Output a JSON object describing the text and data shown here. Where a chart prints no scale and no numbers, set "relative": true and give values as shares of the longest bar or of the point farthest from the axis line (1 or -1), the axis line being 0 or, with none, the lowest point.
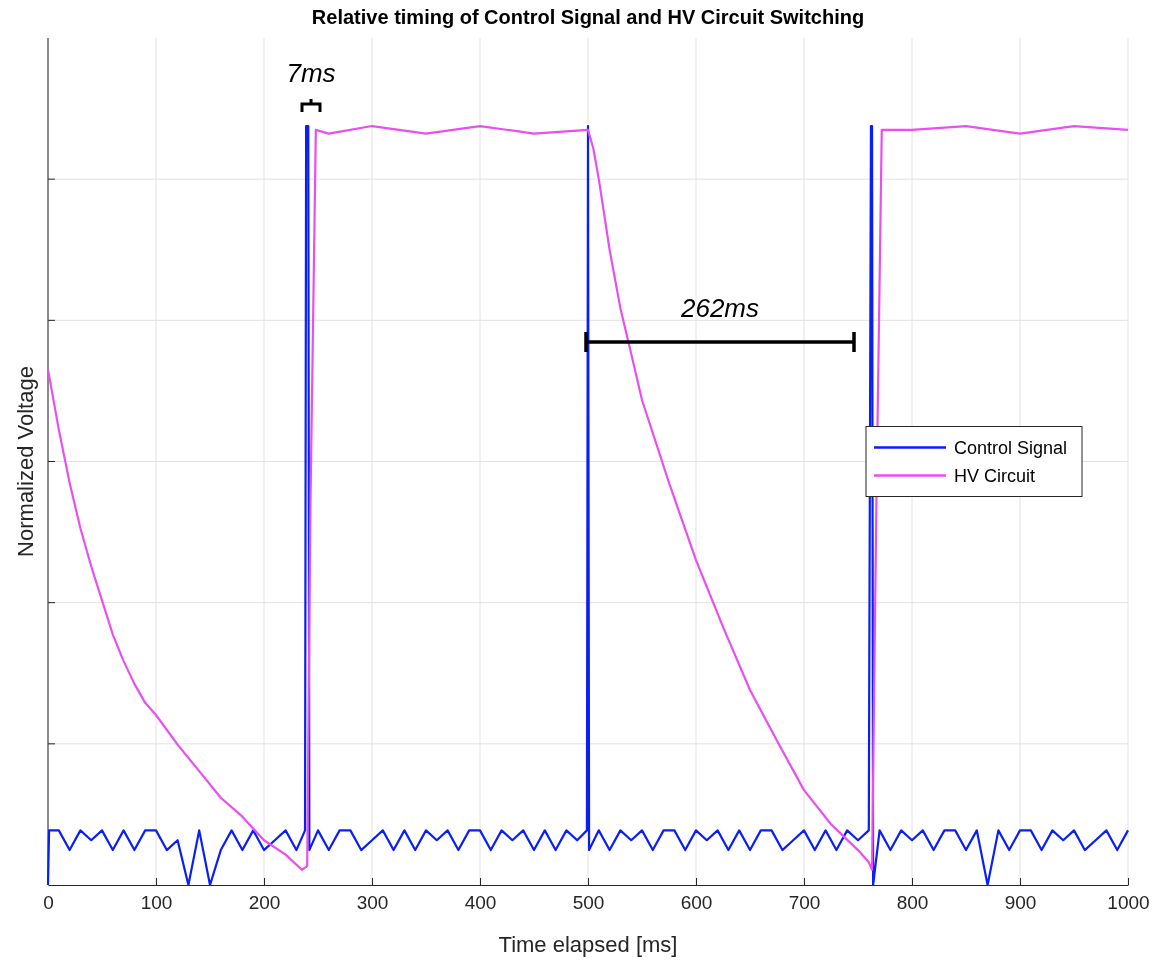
{
  "chart_data": {
    "type": "line",
    "title": "Relative timing of Control Signal and HV Circuit Switching",
    "xlabel": "Time elapsed [ms]",
    "ylabel": "Normalized Voltage",
    "relative": true,
    "xlim": [
      0,
      1000
    ],
    "xticks": [
      0,
      100,
      200,
      300,
      400,
      500,
      600,
      700,
      800,
      900,
      1000
    ],
    "grid": true,
    "legend": "right",
    "marker": "none",
    "line_style": "solid",
    "annotations": [
      "7ms",
      "262ms"
    ],
    "series": [
      {
        "name": "Control Signal",
        "color": "#0a1ff5",
        "x": [
          0,
          1,
          10,
          20,
          30,
          40,
          50,
          60,
          70,
          80,
          90,
          100,
          110,
          120,
          130,
          140,
          150,
          160,
          170,
          180,
          190,
          200,
          210,
          220,
          230,
          238,
          239,
          241,
          242,
          250,
          260,
          270,
          280,
          290,
          300,
          310,
          320,
          330,
          340,
          350,
          360,
          370,
          380,
          390,
          400,
          410,
          420,
          430,
          440,
          450,
          460,
          470,
          480,
          490,
          499,
          500,
          501,
          510,
          520,
          530,
          540,
          550,
          560,
          570,
          580,
          590,
          600,
          610,
          620,
          630,
          640,
          650,
          660,
          670,
          680,
          690,
          700,
          710,
          720,
          730,
          740,
          750,
          760,
          762,
          763,
          764,
          770,
          780,
          790,
          800,
          810,
          820,
          830,
          840,
          850,
          860,
          870,
          880,
          890,
          900,
          910,
          920,
          930,
          940,
          950,
          960,
          970,
          980,
          990,
          1000
        ],
        "values": [
          0,
          0.072,
          0.072,
          0.046,
          0.072,
          0.059,
          0.072,
          0.046,
          0.072,
          0.046,
          0.072,
          0.072,
          0.046,
          0.059,
          0,
          0.072,
          0,
          0.046,
          0.072,
          0.046,
          0.072,
          0.046,
          0.059,
          0.072,
          0.046,
          0.072,
          1,
          1,
          0.046,
          0.072,
          0.046,
          0.072,
          0.072,
          0.046,
          0.059,
          0.072,
          0.046,
          0.072,
          0.046,
          0.072,
          0.059,
          0.072,
          0.046,
          0.072,
          0.072,
          0.046,
          0.072,
          0.059,
          0.072,
          0.046,
          0.072,
          0.046,
          0.072,
          0.059,
          0.072,
          1,
          0.046,
          0.072,
          0.046,
          0.072,
          0.059,
          0.072,
          0.046,
          0.072,
          0.072,
          0.046,
          0.072,
          0.059,
          0.072,
          0.046,
          0.072,
          0.046,
          0.072,
          0.072,
          0.046,
          0.059,
          0.072,
          0.046,
          0.072,
          0.046,
          0.072,
          0.059,
          0.072,
          1,
          1,
          0,
          0.072,
          0.046,
          0.072,
          0.059,
          0.072,
          0.046,
          0.072,
          0.072,
          0.046,
          0.072,
          0,
          0.072,
          0.046,
          0.072,
          0.072,
          0.046,
          0.072,
          0.059,
          0.072,
          0.046,
          0.059,
          0.072,
          0.046,
          0.072
        ]
      },
      {
        "name": "HV Circuit",
        "color": "#e94ff0",
        "x": [
          0,
          10,
          20,
          30,
          40,
          50,
          60,
          70,
          80,
          90,
          100,
          120,
          140,
          160,
          180,
          200,
          220,
          235,
          240,
          243,
          248,
          260,
          300,
          350,
          400,
          450,
          500,
          505,
          510,
          520,
          530,
          540,
          550,
          575,
          600,
          625,
          650,
          675,
          700,
          725,
          750,
          760,
          763,
          767,
          772,
          800,
          850,
          900,
          950,
          1000
        ],
        "values": [
          0.679,
          0.6,
          0.53,
          0.47,
          0.42,
          0.375,
          0.33,
          0.295,
          0.265,
          0.24,
          0.224,
          0.185,
          0.15,
          0.115,
          0.09,
          0.059,
          0.04,
          0.02,
          0.025,
          0.5,
          0.995,
          0.99,
          1,
          0.99,
          1,
          0.99,
          0.995,
          0.97,
          0.93,
          0.837,
          0.76,
          0.7,
          0.639,
          0.53,
          0.428,
          0.34,
          0.257,
          0.19,
          0.125,
          0.08,
          0.046,
          0.03,
          0.02,
          0.5,
          0.995,
          0.995,
          1,
          0.99,
          1,
          0.995
        ]
      }
    ]
  }
}
